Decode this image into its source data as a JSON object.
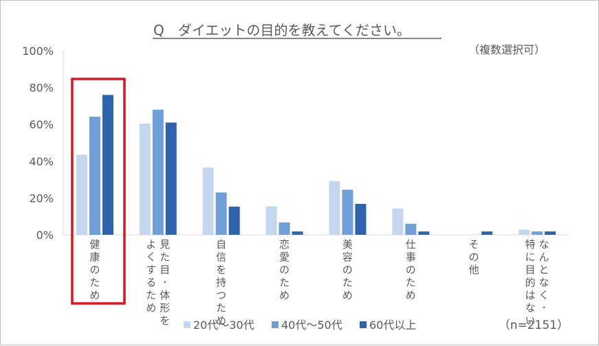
{
  "chart_data": {
    "type": "bar",
    "title": "Q　ダイエットの目的を教えてください。",
    "subtitle": "（複数選択可）",
    "sample_note": "（n=2151）",
    "categories": [
      "健康のため",
      "見た目･体形をよくするため",
      "自信を持つため",
      "恋愛のため",
      "美容のため",
      "仕事のため",
      "その他",
      "なんとなく･特に目的はない"
    ],
    "category_columns": [
      [
        "健康のため"
      ],
      [
        "見た目･体形を",
        "よくするため"
      ],
      [
        "自信を持つため"
      ],
      [
        "恋愛のため"
      ],
      [
        "美容のため"
      ],
      [
        "仕事のため"
      ],
      [
        "その他"
      ],
      [
        "なんとなく･",
        "特に目的はない"
      ]
    ],
    "series": [
      {
        "name": "20代～30代",
        "color": "#c5d6ef",
        "values": [
          43.5,
          60.5,
          36.5,
          15.5,
          29.2,
          14.3,
          0.0,
          2.8
        ]
      },
      {
        "name": "40代～50代",
        "color": "#6f9fd8",
        "values": [
          64.2,
          68.0,
          23.0,
          6.7,
          24.5,
          6.0,
          0.0,
          1.8
        ]
      },
      {
        "name": "60代以上",
        "color": "#2e63ad",
        "values": [
          76.0,
          61.0,
          15.3,
          1.8,
          16.8,
          1.8,
          1.8,
          1.8
        ]
      }
    ],
    "y_ticks": [
      "0%",
      "20%",
      "40%",
      "60%",
      "80%",
      "100%"
    ],
    "ylim": [
      0,
      100
    ],
    "grid": false,
    "legend_position": "bottom",
    "highlight_category": "健康のため",
    "highlight_color": "#e0141e"
  }
}
